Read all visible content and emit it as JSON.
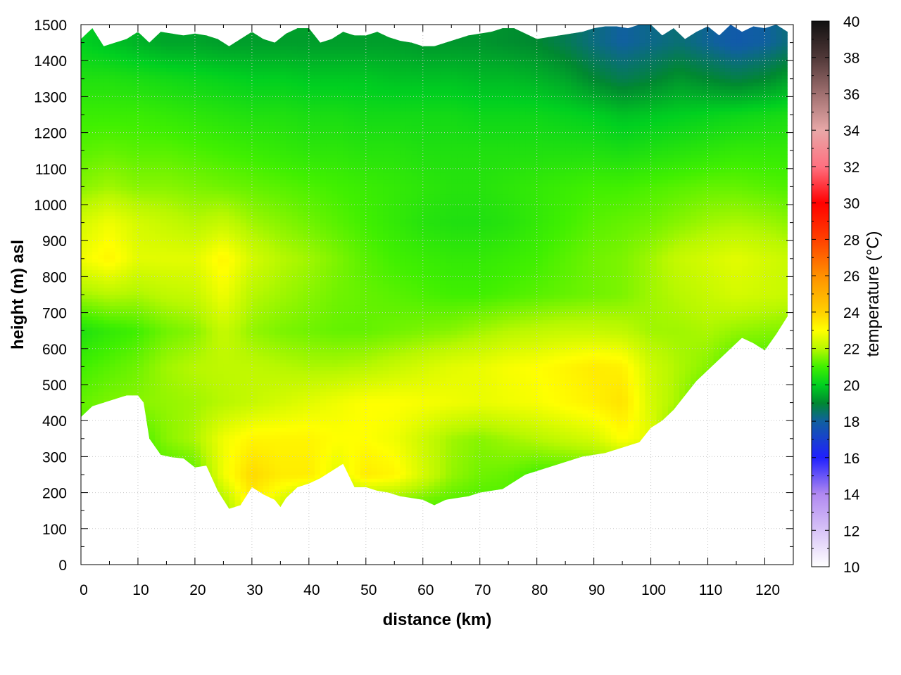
{
  "chart_data": {
    "type": "heatmap",
    "title": "",
    "xlabel": "distance (km)",
    "ylabel": "height (m) asl",
    "colorbar_label": "temperature (°C)",
    "xlim": [
      0,
      125
    ],
    "ylim": [
      0,
      1500
    ],
    "clim": [
      10,
      40
    ],
    "x_ticks": [
      "0",
      "10",
      "20",
      "30",
      "40",
      "50",
      "60",
      "70",
      "80",
      "90",
      "100",
      "110",
      "120"
    ],
    "y_ticks": [
      "0",
      "100",
      "200",
      "300",
      "400",
      "500",
      "600",
      "700",
      "800",
      "900",
      "1000",
      "1100",
      "1200",
      "1300",
      "1400",
      "1500"
    ],
    "c_ticks": [
      "10",
      "12",
      "14",
      "16",
      "18",
      "20",
      "22",
      "24",
      "26",
      "28",
      "30",
      "32",
      "34",
      "36",
      "38",
      "40"
    ],
    "grid": true,
    "colormap_stops": [
      {
        "t": 10,
        "color": "#ffffff"
      },
      {
        "t": 14,
        "color": "#b088f0"
      },
      {
        "t": 16,
        "color": "#2020ff"
      },
      {
        "t": 18,
        "color": "#1060a0"
      },
      {
        "t": 19,
        "color": "#008830"
      },
      {
        "t": 20,
        "color": "#00d020"
      },
      {
        "t": 21,
        "color": "#40f000"
      },
      {
        "t": 22,
        "color": "#b8f800"
      },
      {
        "t": 23,
        "color": "#ffff00"
      },
      {
        "t": 24,
        "color": "#ffd000"
      },
      {
        "t": 26,
        "color": "#ff9000"
      },
      {
        "t": 28,
        "color": "#ff4000"
      },
      {
        "t": 30,
        "color": "#ff0000"
      },
      {
        "t": 32,
        "color": "#ff7080"
      },
      {
        "t": 34,
        "color": "#e8a8a8"
      },
      {
        "t": 36,
        "color": "#a07070"
      },
      {
        "t": 38,
        "color": "#503838"
      },
      {
        "t": 40,
        "color": "#101010"
      }
    ],
    "terrain_bottom": {
      "x": [
        0,
        2,
        4,
        6,
        8,
        10,
        11,
        12,
        14,
        16,
        18,
        20,
        22,
        24,
        26,
        28,
        30,
        32,
        34,
        35,
        36,
        38,
        40,
        42,
        44,
        46,
        48,
        50,
        52,
        54,
        56,
        58,
        60,
        62,
        64,
        66,
        68,
        70,
        72,
        74,
        76,
        78,
        80,
        82,
        84,
        86,
        88,
        90,
        92,
        94,
        96,
        98,
        100,
        102,
        104,
        106,
        108,
        110,
        112,
        114,
        116,
        118,
        120,
        122,
        124
      ],
      "y": [
        410,
        440,
        450,
        460,
        470,
        470,
        450,
        350,
        305,
        298,
        295,
        270,
        275,
        205,
        155,
        165,
        215,
        195,
        180,
        160,
        185,
        215,
        225,
        240,
        260,
        280,
        215,
        215,
        205,
        200,
        190,
        185,
        180,
        165,
        180,
        185,
        190,
        200,
        205,
        210,
        230,
        250,
        260,
        270,
        280,
        290,
        300,
        305,
        310,
        320,
        330,
        340,
        380,
        400,
        430,
        470,
        510,
        540,
        570,
        600,
        630,
        615,
        595,
        640,
        690
      ]
    },
    "top_boundary": {
      "x": [
        0,
        2,
        4,
        6,
        8,
        10,
        12,
        14,
        16,
        18,
        20,
        22,
        24,
        26,
        28,
        30,
        32,
        34,
        36,
        38,
        40,
        42,
        44,
        46,
        48,
        50,
        52,
        54,
        56,
        58,
        60,
        62,
        64,
        66,
        68,
        70,
        72,
        74,
        76,
        78,
        80,
        82,
        84,
        86,
        88,
        90,
        92,
        94,
        96,
        98,
        100,
        102,
        104,
        106,
        108,
        110,
        112,
        114,
        116,
        118,
        120,
        122,
        124
      ],
      "y": [
        1460,
        1490,
        1440,
        1450,
        1460,
        1480,
        1450,
        1480,
        1475,
        1470,
        1475,
        1470,
        1460,
        1440,
        1460,
        1480,
        1460,
        1450,
        1475,
        1490,
        1490,
        1450,
        1460,
        1480,
        1470,
        1470,
        1480,
        1465,
        1455,
        1450,
        1440,
        1440,
        1450,
        1460,
        1470,
        1475,
        1480,
        1490,
        1490,
        1475,
        1460,
        1465,
        1470,
        1475,
        1480,
        1490,
        1495,
        1495,
        1490,
        1500,
        1500,
        1470,
        1490,
        1460,
        1480,
        1495,
        1470,
        1500,
        1480,
        1495,
        1490,
        1500,
        1480
      ]
    },
    "temperature_field": {
      "x": [
        0,
        5,
        10,
        15,
        20,
        25,
        30,
        35,
        40,
        45,
        50,
        55,
        60,
        65,
        70,
        75,
        80,
        85,
        90,
        95,
        100,
        105,
        110,
        115,
        120,
        125
      ],
      "y": [
        150,
        250,
        350,
        450,
        550,
        650,
        750,
        850,
        950,
        1050,
        1150,
        1250,
        1350,
        1450
      ],
      "values": [
        [
          21.0,
          21.0,
          21.0,
          21.0,
          21.0,
          21.6,
          23.2,
          22.2,
          21.0,
          21.0,
          21.0,
          21.0,
          21.0,
          21.0,
          21.0,
          21.0,
          21.0,
          21.0,
          21.0,
          21.0,
          21.0,
          21.0,
          21.0,
          21.0,
          21.0,
          21.0
        ],
        [
          21.0,
          21.0,
          21.0,
          21.0,
          21.2,
          22.8,
          23.8,
          23.4,
          23.4,
          22.6,
          23.4,
          23.2,
          22.4,
          21.7,
          21.4,
          21.3,
          21.0,
          21.0,
          21.0,
          21.0,
          21.0,
          21.0,
          21.0,
          21.0,
          21.0,
          21.0
        ],
        [
          21.0,
          21.0,
          21.0,
          21.6,
          21.9,
          22.8,
          23.2,
          23.2,
          23.2,
          23.0,
          23.0,
          22.8,
          22.3,
          21.8,
          21.6,
          21.8,
          22.0,
          22.2,
          22.4,
          23.0,
          22.6,
          21.0,
          21.0,
          21.0,
          21.0,
          21.0
        ],
        [
          21.3,
          21.5,
          21.6,
          21.7,
          21.8,
          22.0,
          22.2,
          22.4,
          22.6,
          22.8,
          23.0,
          23.0,
          22.9,
          22.8,
          22.7,
          22.8,
          22.9,
          23.1,
          23.3,
          23.6,
          22.4,
          21.8,
          21.0,
          21.0,
          21.0,
          21.0
        ],
        [
          21.0,
          21.2,
          21.4,
          21.8,
          22.0,
          22.1,
          22.1,
          22.0,
          21.9,
          21.9,
          22.0,
          22.2,
          22.4,
          22.6,
          22.7,
          22.9,
          23.0,
          23.2,
          23.4,
          23.3,
          22.3,
          21.9,
          21.6,
          21.0,
          21.0,
          21.0
        ],
        [
          20.5,
          20.8,
          21.0,
          21.4,
          21.6,
          22.2,
          21.7,
          21.5,
          21.4,
          21.3,
          21.3,
          21.4,
          21.5,
          21.6,
          21.8,
          22.0,
          22.1,
          22.2,
          22.2,
          22.1,
          21.8,
          21.8,
          21.9,
          21.7,
          21.6,
          21.5
        ],
        [
          21.8,
          22.0,
          21.9,
          22.1,
          22.2,
          22.8,
          22.0,
          21.8,
          21.6,
          21.4,
          21.3,
          21.2,
          21.1,
          21.0,
          21.0,
          21.1,
          21.2,
          21.3,
          21.4,
          21.5,
          21.8,
          22.0,
          22.2,
          22.4,
          22.3,
          22.2
        ],
        [
          22.8,
          23.2,
          22.6,
          22.6,
          22.6,
          23.2,
          22.4,
          22.0,
          21.8,
          21.5,
          21.2,
          21.0,
          20.9,
          20.8,
          20.8,
          20.9,
          21.0,
          21.2,
          21.4,
          21.5,
          21.8,
          22.2,
          22.4,
          22.6,
          22.4,
          22.2
        ],
        [
          22.4,
          22.8,
          22.4,
          22.2,
          22.0,
          22.2,
          21.8,
          21.6,
          21.4,
          21.2,
          21.0,
          20.8,
          20.6,
          20.5,
          20.5,
          20.6,
          20.8,
          21.0,
          21.2,
          21.3,
          21.4,
          21.6,
          21.8,
          21.9,
          21.8,
          21.6
        ],
        [
          21.6,
          21.8,
          21.6,
          21.6,
          21.5,
          21.4,
          21.3,
          21.2,
          21.1,
          21.0,
          20.9,
          20.8,
          20.7,
          20.6,
          20.6,
          20.7,
          20.8,
          20.9,
          21.0,
          21.0,
          21.1,
          21.2,
          21.3,
          21.3,
          21.2,
          21.1
        ],
        [
          21.2,
          21.3,
          21.2,
          21.2,
          21.1,
          21.0,
          20.9,
          20.8,
          20.7,
          20.7,
          20.6,
          20.6,
          20.5,
          20.5,
          20.5,
          20.5,
          20.5,
          20.5,
          20.5,
          20.4,
          20.5,
          20.6,
          20.7,
          20.8,
          20.8,
          20.8
        ],
        [
          20.9,
          20.9,
          20.9,
          20.8,
          20.7,
          20.6,
          20.5,
          20.5,
          20.4,
          20.4,
          20.3,
          20.3,
          20.3,
          20.3,
          20.2,
          20.2,
          20.2,
          20.1,
          20.0,
          19.8,
          19.9,
          20.0,
          20.1,
          20.2,
          20.3,
          20.4
        ],
        [
          20.5,
          20.5,
          20.4,
          20.3,
          20.2,
          20.1,
          20.0,
          20.0,
          19.9,
          19.9,
          19.9,
          19.8,
          19.8,
          19.8,
          19.7,
          19.7,
          19.6,
          19.4,
          19.0,
          18.7,
          18.9,
          19.2,
          19.0,
          18.8,
          19.0,
          19.4
        ],
        [
          20.0,
          19.8,
          19.6,
          19.4,
          19.4,
          19.3,
          19.3,
          19.3,
          19.3,
          19.3,
          19.3,
          19.3,
          19.2,
          19.2,
          19.2,
          19.1,
          19.0,
          18.7,
          18.3,
          18.0,
          18.2,
          18.4,
          18.1,
          17.8,
          18.0,
          18.4
        ]
      ]
    }
  }
}
